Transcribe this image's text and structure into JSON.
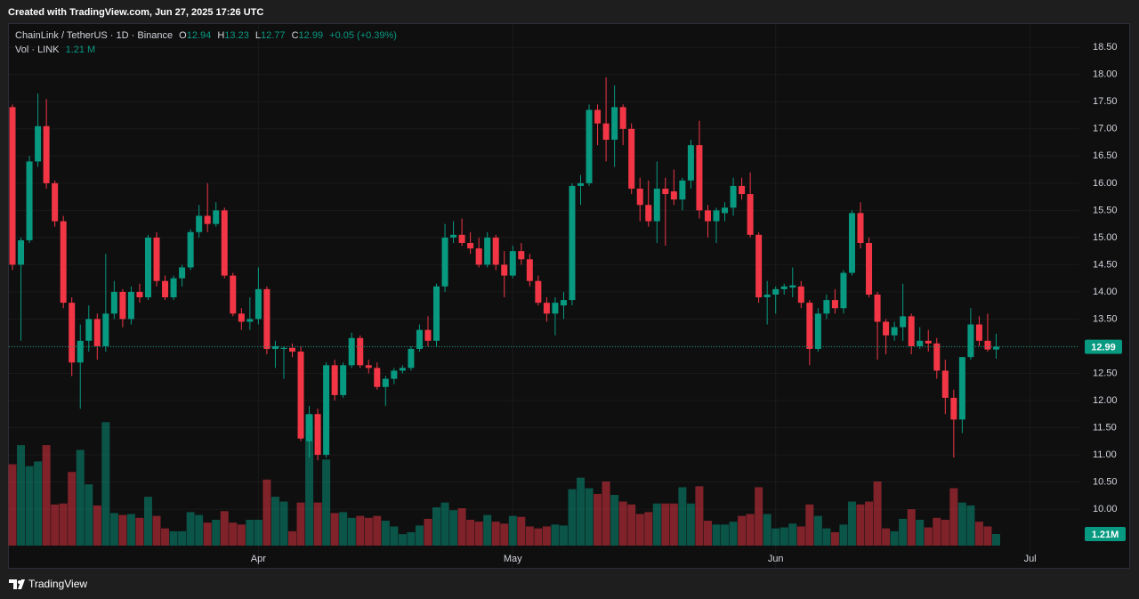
{
  "header": {
    "created": "Created with TradingView.com, Jun 27, 2025 17:26 UTC"
  },
  "footer": {
    "brand": "TradingView"
  },
  "chart_data": {
    "type": "candlestick",
    "symbol": "ChainLink / TetherUS · 1D · Binance",
    "open_label": "O",
    "high_label": "H",
    "low_label": "L",
    "close_label": "C",
    "change": "+0.05 (+0.39%)",
    "volume_title": "Vol · LINK",
    "volume_label": "1.21 M",
    "volume_badge": "1.21M",
    "up_color": "#089981",
    "down_color": "#f23645",
    "grid": true,
    "ylim": [
      8.92,
      18.93
    ],
    "yticks": [
      {
        "value": 10,
        "label": "10.00"
      },
      {
        "value": 10.5,
        "label": "10.50"
      },
      {
        "value": 11,
        "label": "11.00"
      },
      {
        "value": 11.5,
        "label": "11.50"
      },
      {
        "value": 12,
        "label": "12.00"
      },
      {
        "value": 12.5,
        "label": "12.50"
      },
      {
        "value": 13,
        "label": "13.00"
      },
      {
        "value": 13.5,
        "label": "13.50"
      },
      {
        "value": 14,
        "label": "14.00"
      },
      {
        "value": 14.5,
        "label": "14.50"
      },
      {
        "value": 15,
        "label": "15.00"
      },
      {
        "value": 15.5,
        "label": "15.50"
      },
      {
        "value": 16,
        "label": "16.00"
      },
      {
        "value": 16.5,
        "label": "16.50"
      },
      {
        "value": 17,
        "label": "17.00"
      },
      {
        "value": 17.5,
        "label": "17.50"
      },
      {
        "value": 18,
        "label": "18.00"
      },
      {
        "value": 18.5,
        "label": "18.50"
      }
    ],
    "xticks": [
      {
        "value": 29,
        "label": "Apr"
      },
      {
        "value": 59,
        "label": "May"
      },
      {
        "value": 90,
        "label": "Jun"
      },
      {
        "value": 120,
        "label": "Jul"
      }
    ],
    "ohlc": [
      [
        17.4,
        17.45,
        14.4,
        14.5
      ],
      [
        14.5,
        15.0,
        13.1,
        14.95
      ],
      [
        14.95,
        16.5,
        14.9,
        16.4
      ],
      [
        16.4,
        17.65,
        16.3,
        17.05
      ],
      [
        17.05,
        17.55,
        15.9,
        16.0
      ],
      [
        16.0,
        16.05,
        15.2,
        15.3
      ],
      [
        15.3,
        15.4,
        13.7,
        13.8
      ],
      [
        13.8,
        13.9,
        12.45,
        12.7
      ],
      [
        12.7,
        13.4,
        11.85,
        13.1
      ],
      [
        13.1,
        13.75,
        12.9,
        13.5
      ],
      [
        13.5,
        13.6,
        12.75,
        13.0
      ],
      [
        13.0,
        14.7,
        12.9,
        13.6
      ],
      [
        13.6,
        14.2,
        13.5,
        14.0
      ],
      [
        14.0,
        14.05,
        13.35,
        13.5
      ],
      [
        13.5,
        14.1,
        13.4,
        14.0
      ],
      [
        14.0,
        14.15,
        13.8,
        13.9
      ],
      [
        13.9,
        15.05,
        13.85,
        15.0
      ],
      [
        15.0,
        15.1,
        14.1,
        14.2
      ],
      [
        14.2,
        14.3,
        13.85,
        13.9
      ],
      [
        13.9,
        14.3,
        13.85,
        14.25
      ],
      [
        14.25,
        14.5,
        14.1,
        14.45
      ],
      [
        14.45,
        15.15,
        14.4,
        15.1
      ],
      [
        15.1,
        15.6,
        15.0,
        15.4
      ],
      [
        15.4,
        16.0,
        15.1,
        15.25
      ],
      [
        15.25,
        15.65,
        15.2,
        15.5
      ],
      [
        15.5,
        15.55,
        14.25,
        14.3
      ],
      [
        14.3,
        14.35,
        13.55,
        13.6
      ],
      [
        13.6,
        13.7,
        13.3,
        13.45
      ],
      [
        13.45,
        13.9,
        13.3,
        13.5
      ],
      [
        13.5,
        14.45,
        13.4,
        14.05
      ],
      [
        14.05,
        14.1,
        12.85,
        12.95
      ],
      [
        12.95,
        13.1,
        12.6,
        13.0
      ],
      [
        12.95,
        13.0,
        12.4,
        12.97
      ],
      [
        12.97,
        13.05,
        12.8,
        12.9
      ],
      [
        12.9,
        13.0,
        11.25,
        11.3
      ],
      [
        11.25,
        11.9,
        10.95,
        11.75
      ],
      [
        11.75,
        11.85,
        10.9,
        11.0
      ],
      [
        11.0,
        12.7,
        10.95,
        12.65
      ],
      [
        12.65,
        12.75,
        12.0,
        12.1
      ],
      [
        12.1,
        12.7,
        12.05,
        12.65
      ],
      [
        12.65,
        13.25,
        12.6,
        13.15
      ],
      [
        13.15,
        13.2,
        12.6,
        12.65
      ],
      [
        12.65,
        12.75,
        12.5,
        12.6
      ],
      [
        12.6,
        12.7,
        12.2,
        12.25
      ],
      [
        12.25,
        12.45,
        11.9,
        12.4
      ],
      [
        12.4,
        12.6,
        12.3,
        12.55
      ],
      [
        12.55,
        12.65,
        12.5,
        12.6
      ],
      [
        12.6,
        13.0,
        12.55,
        12.95
      ],
      [
        12.95,
        13.4,
        12.9,
        13.3
      ],
      [
        13.3,
        13.55,
        13.0,
        13.1
      ],
      [
        13.1,
        14.15,
        13.0,
        14.1
      ],
      [
        14.1,
        15.25,
        14.0,
        15.0
      ],
      [
        15.0,
        15.3,
        14.9,
        15.05
      ],
      [
        15.05,
        15.35,
        14.85,
        14.9
      ],
      [
        14.9,
        15.1,
        14.7,
        14.8
      ],
      [
        14.8,
        15.0,
        14.45,
        14.5
      ],
      [
        14.5,
        15.1,
        14.45,
        15.0
      ],
      [
        15.0,
        15.05,
        14.4,
        14.5
      ],
      [
        14.5,
        14.75,
        13.9,
        14.3
      ],
      [
        14.3,
        14.85,
        14.25,
        14.75
      ],
      [
        14.75,
        14.9,
        14.5,
        14.6
      ],
      [
        14.6,
        14.7,
        14.1,
        14.2
      ],
      [
        14.2,
        14.3,
        13.75,
        13.8
      ],
      [
        13.8,
        13.9,
        13.45,
        13.6
      ],
      [
        13.6,
        13.9,
        13.2,
        13.8
      ],
      [
        13.75,
        14.0,
        13.5,
        13.85
      ],
      [
        13.85,
        16.0,
        13.75,
        15.95
      ],
      [
        15.95,
        16.15,
        15.6,
        16.0
      ],
      [
        16.0,
        17.45,
        15.95,
        17.35
      ],
      [
        17.35,
        17.45,
        16.7,
        17.1
      ],
      [
        17.1,
        17.95,
        16.4,
        16.8
      ],
      [
        16.8,
        17.8,
        16.3,
        17.4
      ],
      [
        17.4,
        17.45,
        16.7,
        17.0
      ],
      [
        17.0,
        17.1,
        15.8,
        15.9
      ],
      [
        15.9,
        16.1,
        15.3,
        15.6
      ],
      [
        15.6,
        16.05,
        15.2,
        15.3
      ],
      [
        15.3,
        16.4,
        14.9,
        15.9
      ],
      [
        15.9,
        16.1,
        14.85,
        15.8
      ],
      [
        15.85,
        16.25,
        15.6,
        15.7
      ],
      [
        15.7,
        16.1,
        15.5,
        16.05
      ],
      [
        16.05,
        16.8,
        15.9,
        16.7
      ],
      [
        16.7,
        17.15,
        15.35,
        15.5
      ],
      [
        15.5,
        15.6,
        15.0,
        15.3
      ],
      [
        15.3,
        15.55,
        14.9,
        15.5
      ],
      [
        15.45,
        15.65,
        15.3,
        15.55
      ],
      [
        15.55,
        16.1,
        15.4,
        15.95
      ],
      [
        15.95,
        16.1,
        15.7,
        15.8
      ],
      [
        15.8,
        16.2,
        15.0,
        15.05
      ],
      [
        15.05,
        15.1,
        13.8,
        13.9
      ],
      [
        13.9,
        14.2,
        13.4,
        13.95
      ],
      [
        13.95,
        14.1,
        13.6,
        14.05
      ],
      [
        14.05,
        14.15,
        13.95,
        14.1
      ],
      [
        14.08,
        14.45,
        13.9,
        14.12
      ],
      [
        14.1,
        14.2,
        13.7,
        13.8
      ],
      [
        13.8,
        13.85,
        12.65,
        12.95
      ],
      [
        12.95,
        13.7,
        12.9,
        13.6
      ],
      [
        13.6,
        13.95,
        13.5,
        13.85
      ],
      [
        13.85,
        14.05,
        13.6,
        13.7
      ],
      [
        13.7,
        14.4,
        13.6,
        14.35
      ],
      [
        14.35,
        15.5,
        14.3,
        15.45
      ],
      [
        15.45,
        15.65,
        14.8,
        14.9
      ],
      [
        14.9,
        15.0,
        13.9,
        13.95
      ],
      [
        13.95,
        14.0,
        12.75,
        13.45
      ],
      [
        13.45,
        13.5,
        12.85,
        13.2
      ],
      [
        13.2,
        13.45,
        13.1,
        13.35
      ],
      [
        13.35,
        14.15,
        13.1,
        13.55
      ],
      [
        13.55,
        13.6,
        12.85,
        13.0
      ],
      [
        13.0,
        13.35,
        12.95,
        13.1
      ],
      [
        13.1,
        13.3,
        12.9,
        13.05
      ],
      [
        13.05,
        13.15,
        12.4,
        12.55
      ],
      [
        12.55,
        12.75,
        11.75,
        12.05
      ],
      [
        12.05,
        12.2,
        10.95,
        11.65
      ],
      [
        11.65,
        12.8,
        11.4,
        12.8
      ],
      [
        12.8,
        13.7,
        12.75,
        13.4
      ],
      [
        13.4,
        13.55,
        13.0,
        13.1
      ],
      [
        13.1,
        13.6,
        12.9,
        12.94
      ],
      [
        12.94,
        13.23,
        12.77,
        12.99
      ]
    ],
    "volume": [
      8.5,
      10.5,
      8.3,
      8.8,
      10.5,
      4.3,
      4.4,
      7.7,
      10.0,
      6.4,
      4.2,
      12.9,
      3.4,
      3.2,
      3.3,
      2.9,
      5.1,
      3.1,
      1.8,
      1.5,
      1.5,
      3.5,
      3.2,
      2.4,
      2.7,
      3.6,
      2.4,
      2.2,
      2.7,
      2.7,
      6.9,
      5.1,
      4.6,
      1.5,
      4.5,
      13.7,
      4.5,
      9.0,
      3.4,
      3.5,
      2.9,
      3.1,
      2.9,
      3.1,
      2.6,
      2.0,
      1.2,
      1.4,
      2.1,
      2.8,
      4.0,
      4.5,
      3.7,
      3.9,
      2.7,
      2.5,
      3.2,
      2.5,
      2.3,
      3.1,
      3.0,
      2.0,
      1.8,
      2.0,
      2.2,
      2.1,
      5.9,
      7.1,
      6.0,
      5.4,
      6.7,
      5.3,
      4.6,
      4.3,
      3.3,
      3.5,
      4.4,
      4.4,
      4.4,
      6.1,
      4.4,
      6.2,
      2.6,
      2.2,
      2.2,
      2.5,
      3.1,
      3.3,
      6.1,
      3.3,
      1.8,
      1.9,
      2.3,
      2.0,
      4.3,
      3.1,
      1.8,
      1.4,
      2.2,
      4.6,
      4.3,
      4.6,
      6.7,
      1.8,
      1.5,
      2.8,
      3.8,
      2.7,
      1.9,
      2.9,
      2.7,
      6.0,
      4.5,
      4.2,
      2.5,
      2.0,
      1.21
    ]
  }
}
